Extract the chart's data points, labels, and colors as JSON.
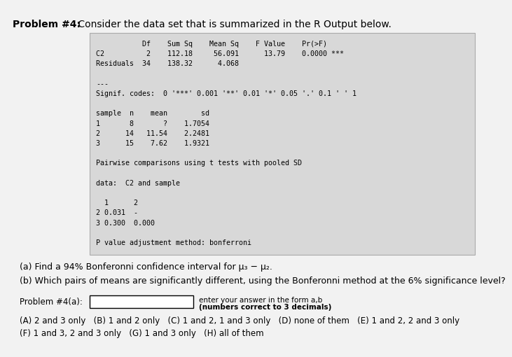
{
  "title_bold": "Problem #4:",
  "title_normal": " Consider the data set that is summarized in the R Output below.",
  "bg_color": "#e8e8e8",
  "outer_bg": "#f2f2f2",
  "box_bg": "#d8d8d8",
  "box_lines": [
    "           Df    Sum Sq    Mean Sq    F Value    Pr(>F)",
    "C2          2    112.18     56.091      13.79    0.0000 ***",
    "Residuals  34    138.32      4.068",
    "",
    "---",
    "Signif. codes:  0 '***' 0.001 '**' 0.01 '*' 0.05 '.' 0.1 ' ' 1",
    "",
    "sample  n    mean        sd",
    "1       8       ?    1.7054",
    "2      14   11.54    2.2481",
    "3      15    7.62    1.9321",
    "",
    "Pairwise comparisons using t tests with pooled SD",
    "",
    "data:  C2 and sample",
    "",
    "  1      2",
    "2 0.031  -",
    "3 0.300  0.000",
    "",
    "P value adjustment method: bonferroni"
  ],
  "part_a": "(a) Find a 94% Bonferonni confidence interval for μ₃ − μ₂.",
  "part_b": "(b) Which pairs of means are significantly different, using the Bonferonni method at the 6% significance level?",
  "problem_label": "Problem #4(a):",
  "answer_hint_line1": "enter your answer in the form a,b",
  "answer_hint_line2": "(numbers correct to 3 decimals)",
  "choices_line1": "(A) 2 and 3 only   (B) 1 and 2 only   (C) 1 and 2, 1 and 3 only   (D) none of them   (E) 1 and 2, 2 and 3 only",
  "choices_line2": "(F) 1 and 3, 2 and 3 only   (G) 1 and 3 only   (H) all of them"
}
